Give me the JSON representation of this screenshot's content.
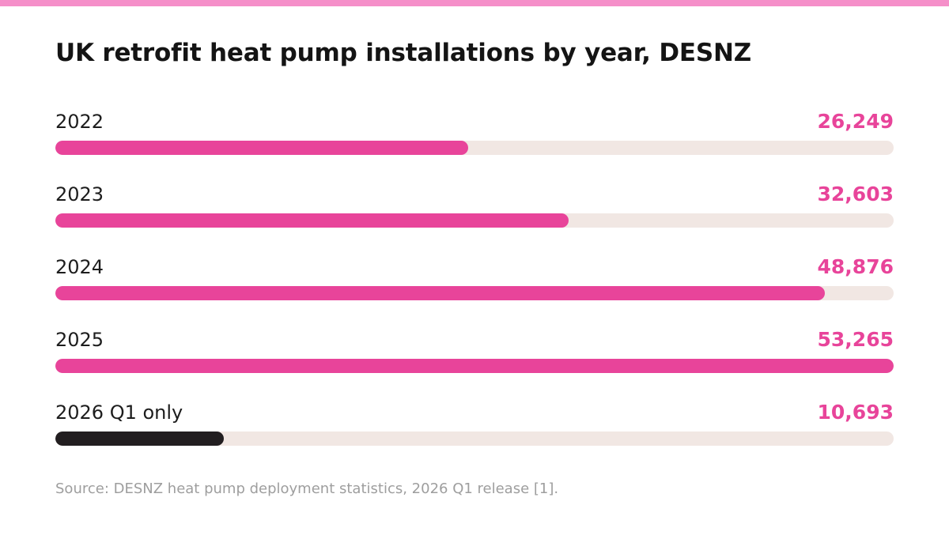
{
  "chart_data": {
    "type": "bar",
    "orientation": "horizontal",
    "title": "UK retrofit heat pump installations by year, DESNZ",
    "categories": [
      "2022",
      "2023",
      "2024",
      "2025",
      "2026 Q1 only"
    ],
    "values": [
      26249,
      32603,
      48876,
      53265,
      10693
    ],
    "value_labels": [
      "26,249",
      "32,603",
      "48,876",
      "53,265",
      "10,693"
    ],
    "xlim": [
      0,
      53265
    ],
    "grid": false,
    "legend": "none",
    "source": "Source: DESNZ heat pump deployment statistics, 2026 Q1 release [1].",
    "colors": {
      "accent": "#e8449a",
      "highlight_bar": "#221e20",
      "track": "#f1e7e3",
      "value_text": "#e8449a",
      "top_stripe": "#f58fc9"
    }
  }
}
